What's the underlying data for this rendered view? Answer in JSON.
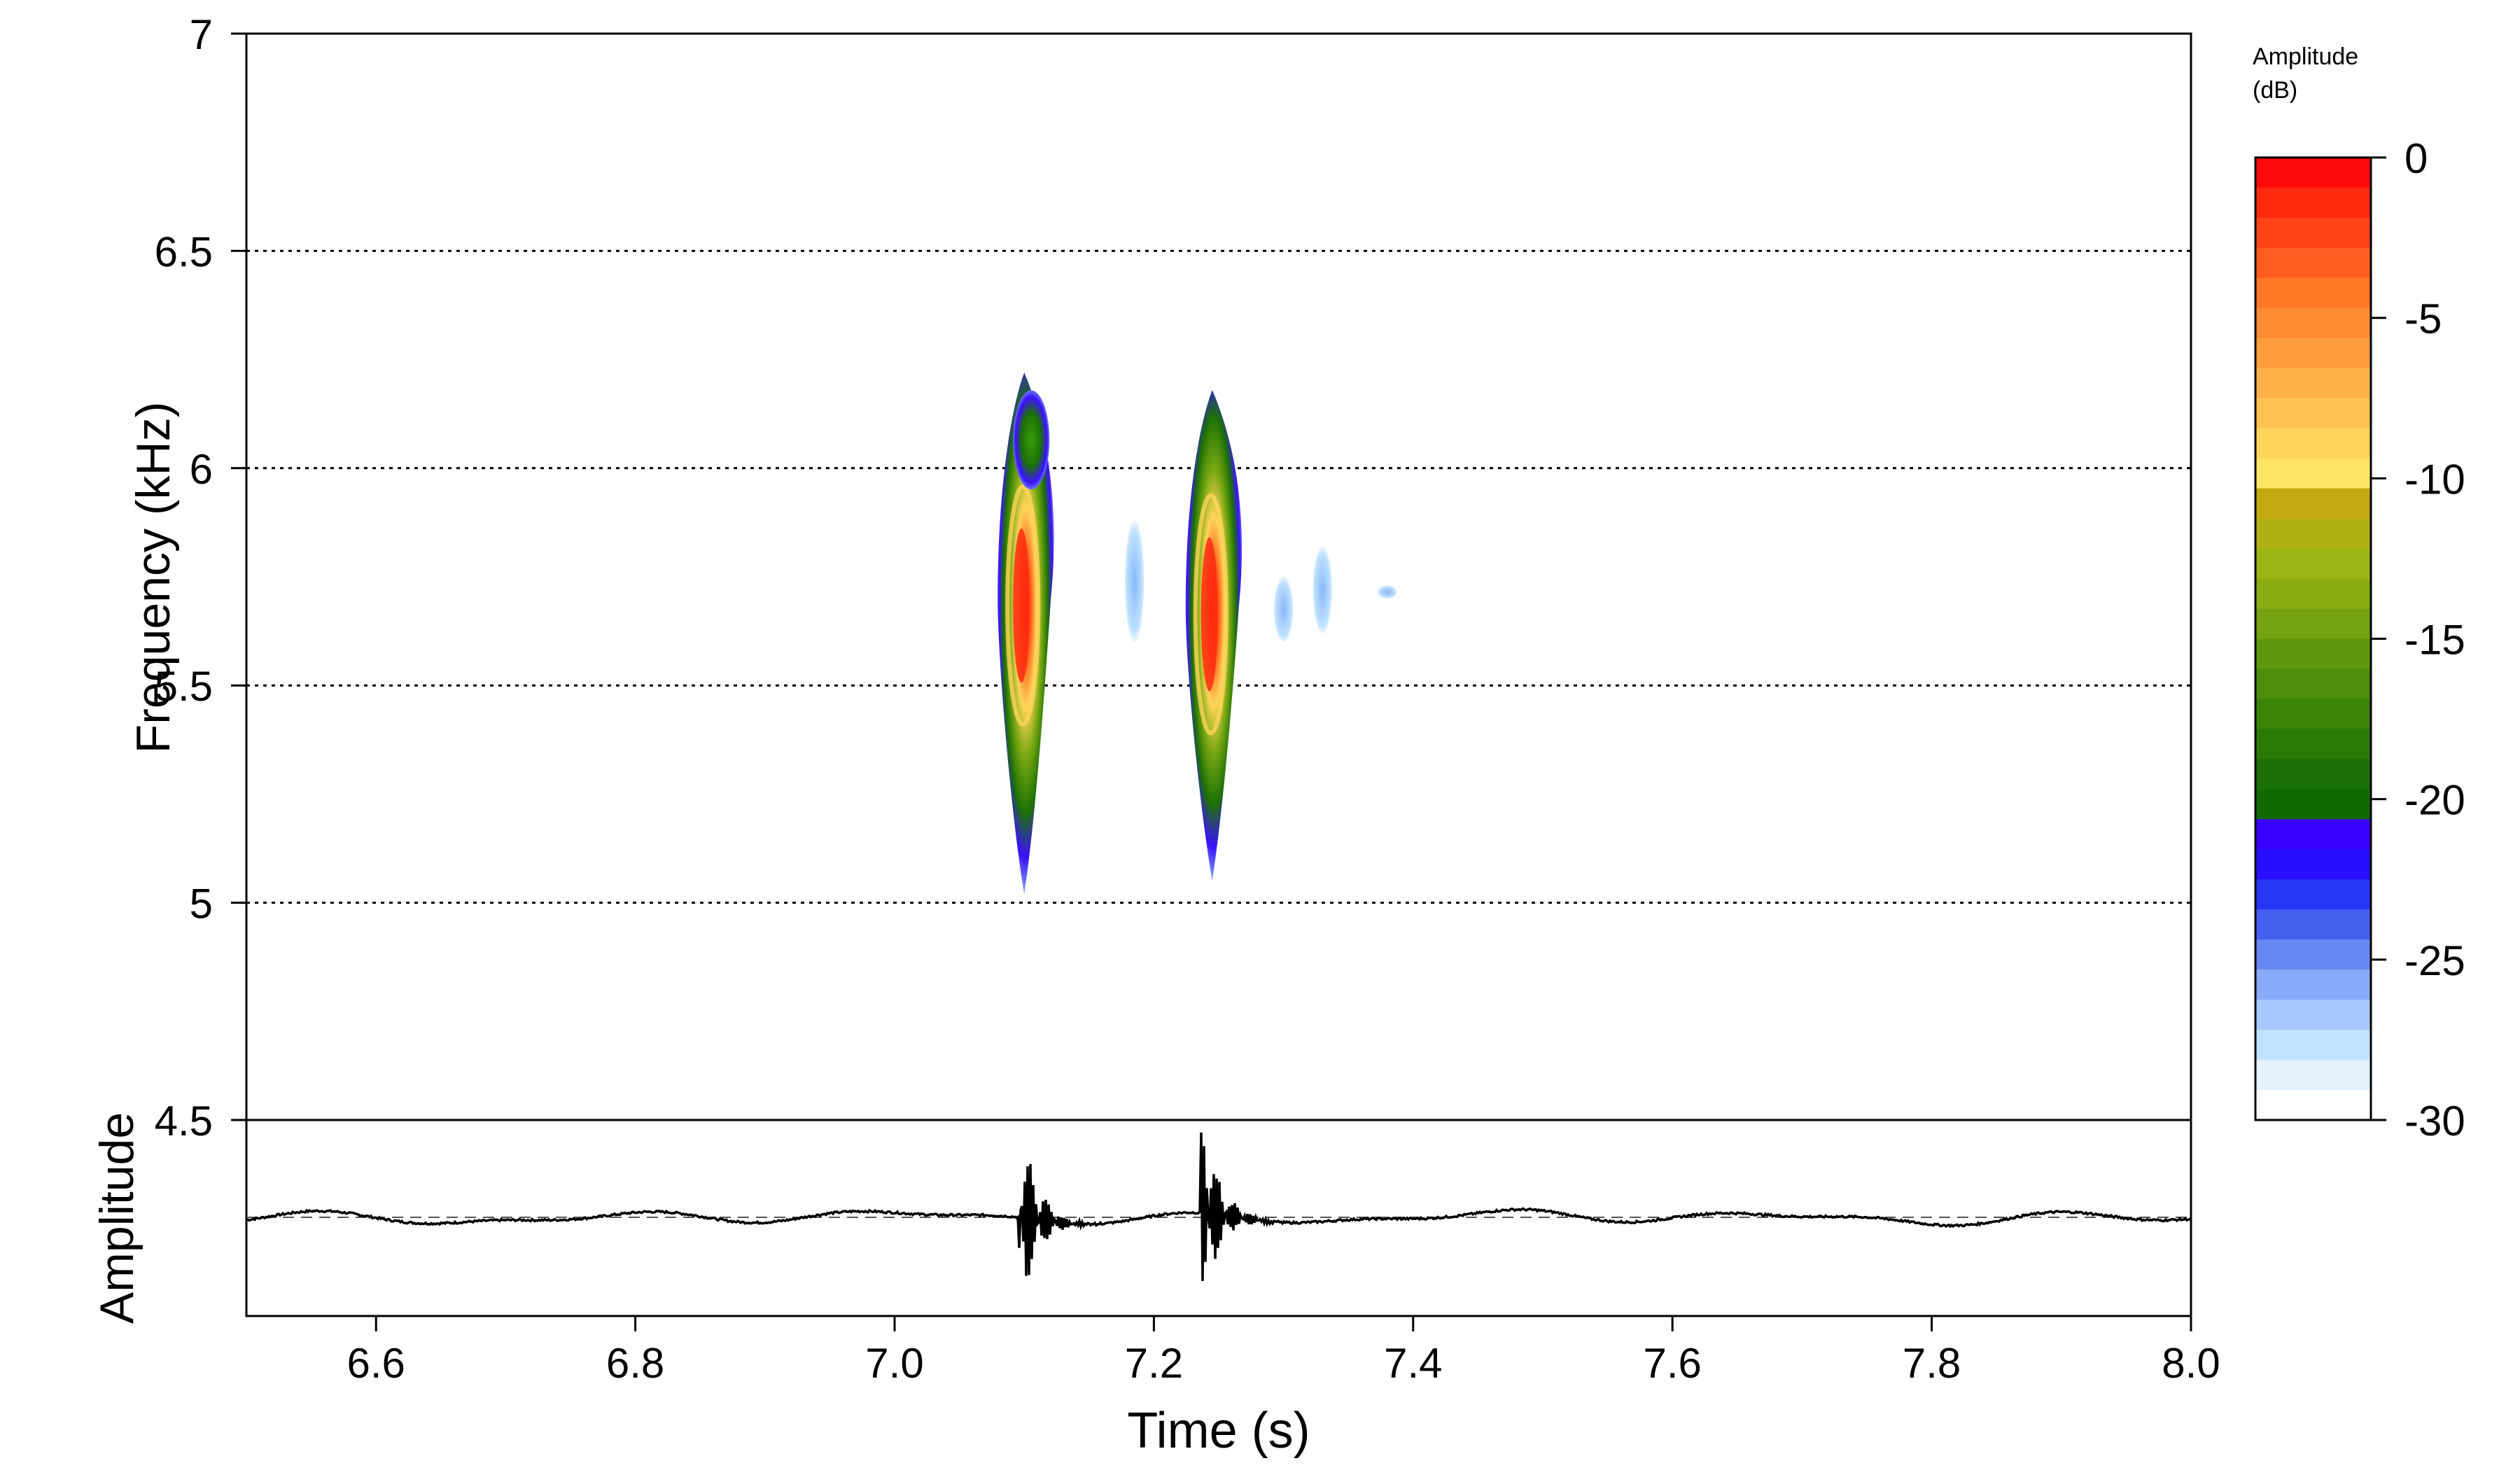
{
  "chart_data": {
    "type": "spectrogram",
    "spectrogram": {
      "ylabel": "Frequency (kHz)",
      "ylim": [
        4.5,
        7
      ],
      "yticks": [
        "4.5",
        "5",
        "5.5",
        "6",
        "6.5",
        "7"
      ],
      "grid_lines": [
        5,
        5.5,
        6,
        6.5
      ],
      "grid": "horizontal dotted",
      "calls": [
        {
          "time_s": 7.1,
          "freq_range_khz": [
            5.02,
            6.22
          ],
          "peak_db": 0,
          "peak_freq_khz": 5.7,
          "upper_harmonic_khz": [
            5.98,
            6.15
          ]
        },
        {
          "time_s": 7.245,
          "freq_range_khz": [
            5.05,
            6.18
          ],
          "peak_db": 0,
          "peak_freq_khz": 5.68
        }
      ],
      "faint_segments": [
        {
          "time_s": 7.185,
          "freq_range_khz": [
            5.6,
            5.88
          ]
        },
        {
          "time_s": 7.3,
          "freq_range_khz": [
            5.6,
            5.75
          ]
        },
        {
          "time_s": 7.33,
          "freq_range_khz": [
            5.62,
            5.82
          ]
        },
        {
          "time_s": 7.38,
          "freq_range_khz": [
            5.7,
            5.73
          ]
        }
      ]
    },
    "oscillogram": {
      "ylabel": "Amplitude",
      "baseline": "dashed",
      "bursts": [
        {
          "time_s": 7.1,
          "relative_amplitude": 0.95
        },
        {
          "time_s": 7.24,
          "relative_amplitude": 1.0
        }
      ]
    },
    "x_axis": {
      "xlabel": "Time (s)",
      "xlim": [
        6.5,
        8.0
      ],
      "xticks": [
        "6.6",
        "6.8",
        "7.0",
        "7.2",
        "7.4",
        "7.6",
        "7.8",
        "8.0"
      ]
    },
    "colorbar": {
      "title_line1": "Amplitude",
      "title_line2": "(dB)",
      "range": [
        -30,
        0
      ],
      "ticks": [
        "0",
        "-5",
        "-10",
        "-15",
        "-20",
        "-25",
        "-30"
      ],
      "colors_top_to_bottom": [
        "#ff0a0a",
        "#ff2a10",
        "#ff4418",
        "#ff5e20",
        "#ff7828",
        "#ff8c32",
        "#ff9e3c",
        "#ffb046",
        "#ffc250",
        "#ffd45a",
        "#ffe466",
        "#c4a812",
        "#b0b014",
        "#9cb414",
        "#88ac12",
        "#74a210",
        "#60980e",
        "#4c8e0c",
        "#3a840a",
        "#2a7a08",
        "#1c7006",
        "#126a04",
        "#3a00ff",
        "#2810ff",
        "#2636f4",
        "#4460f0",
        "#6688f4",
        "#88aaf8",
        "#a6c8fc",
        "#c0e2fe",
        "#e4f2fe",
        "#ffffff"
      ]
    }
  }
}
